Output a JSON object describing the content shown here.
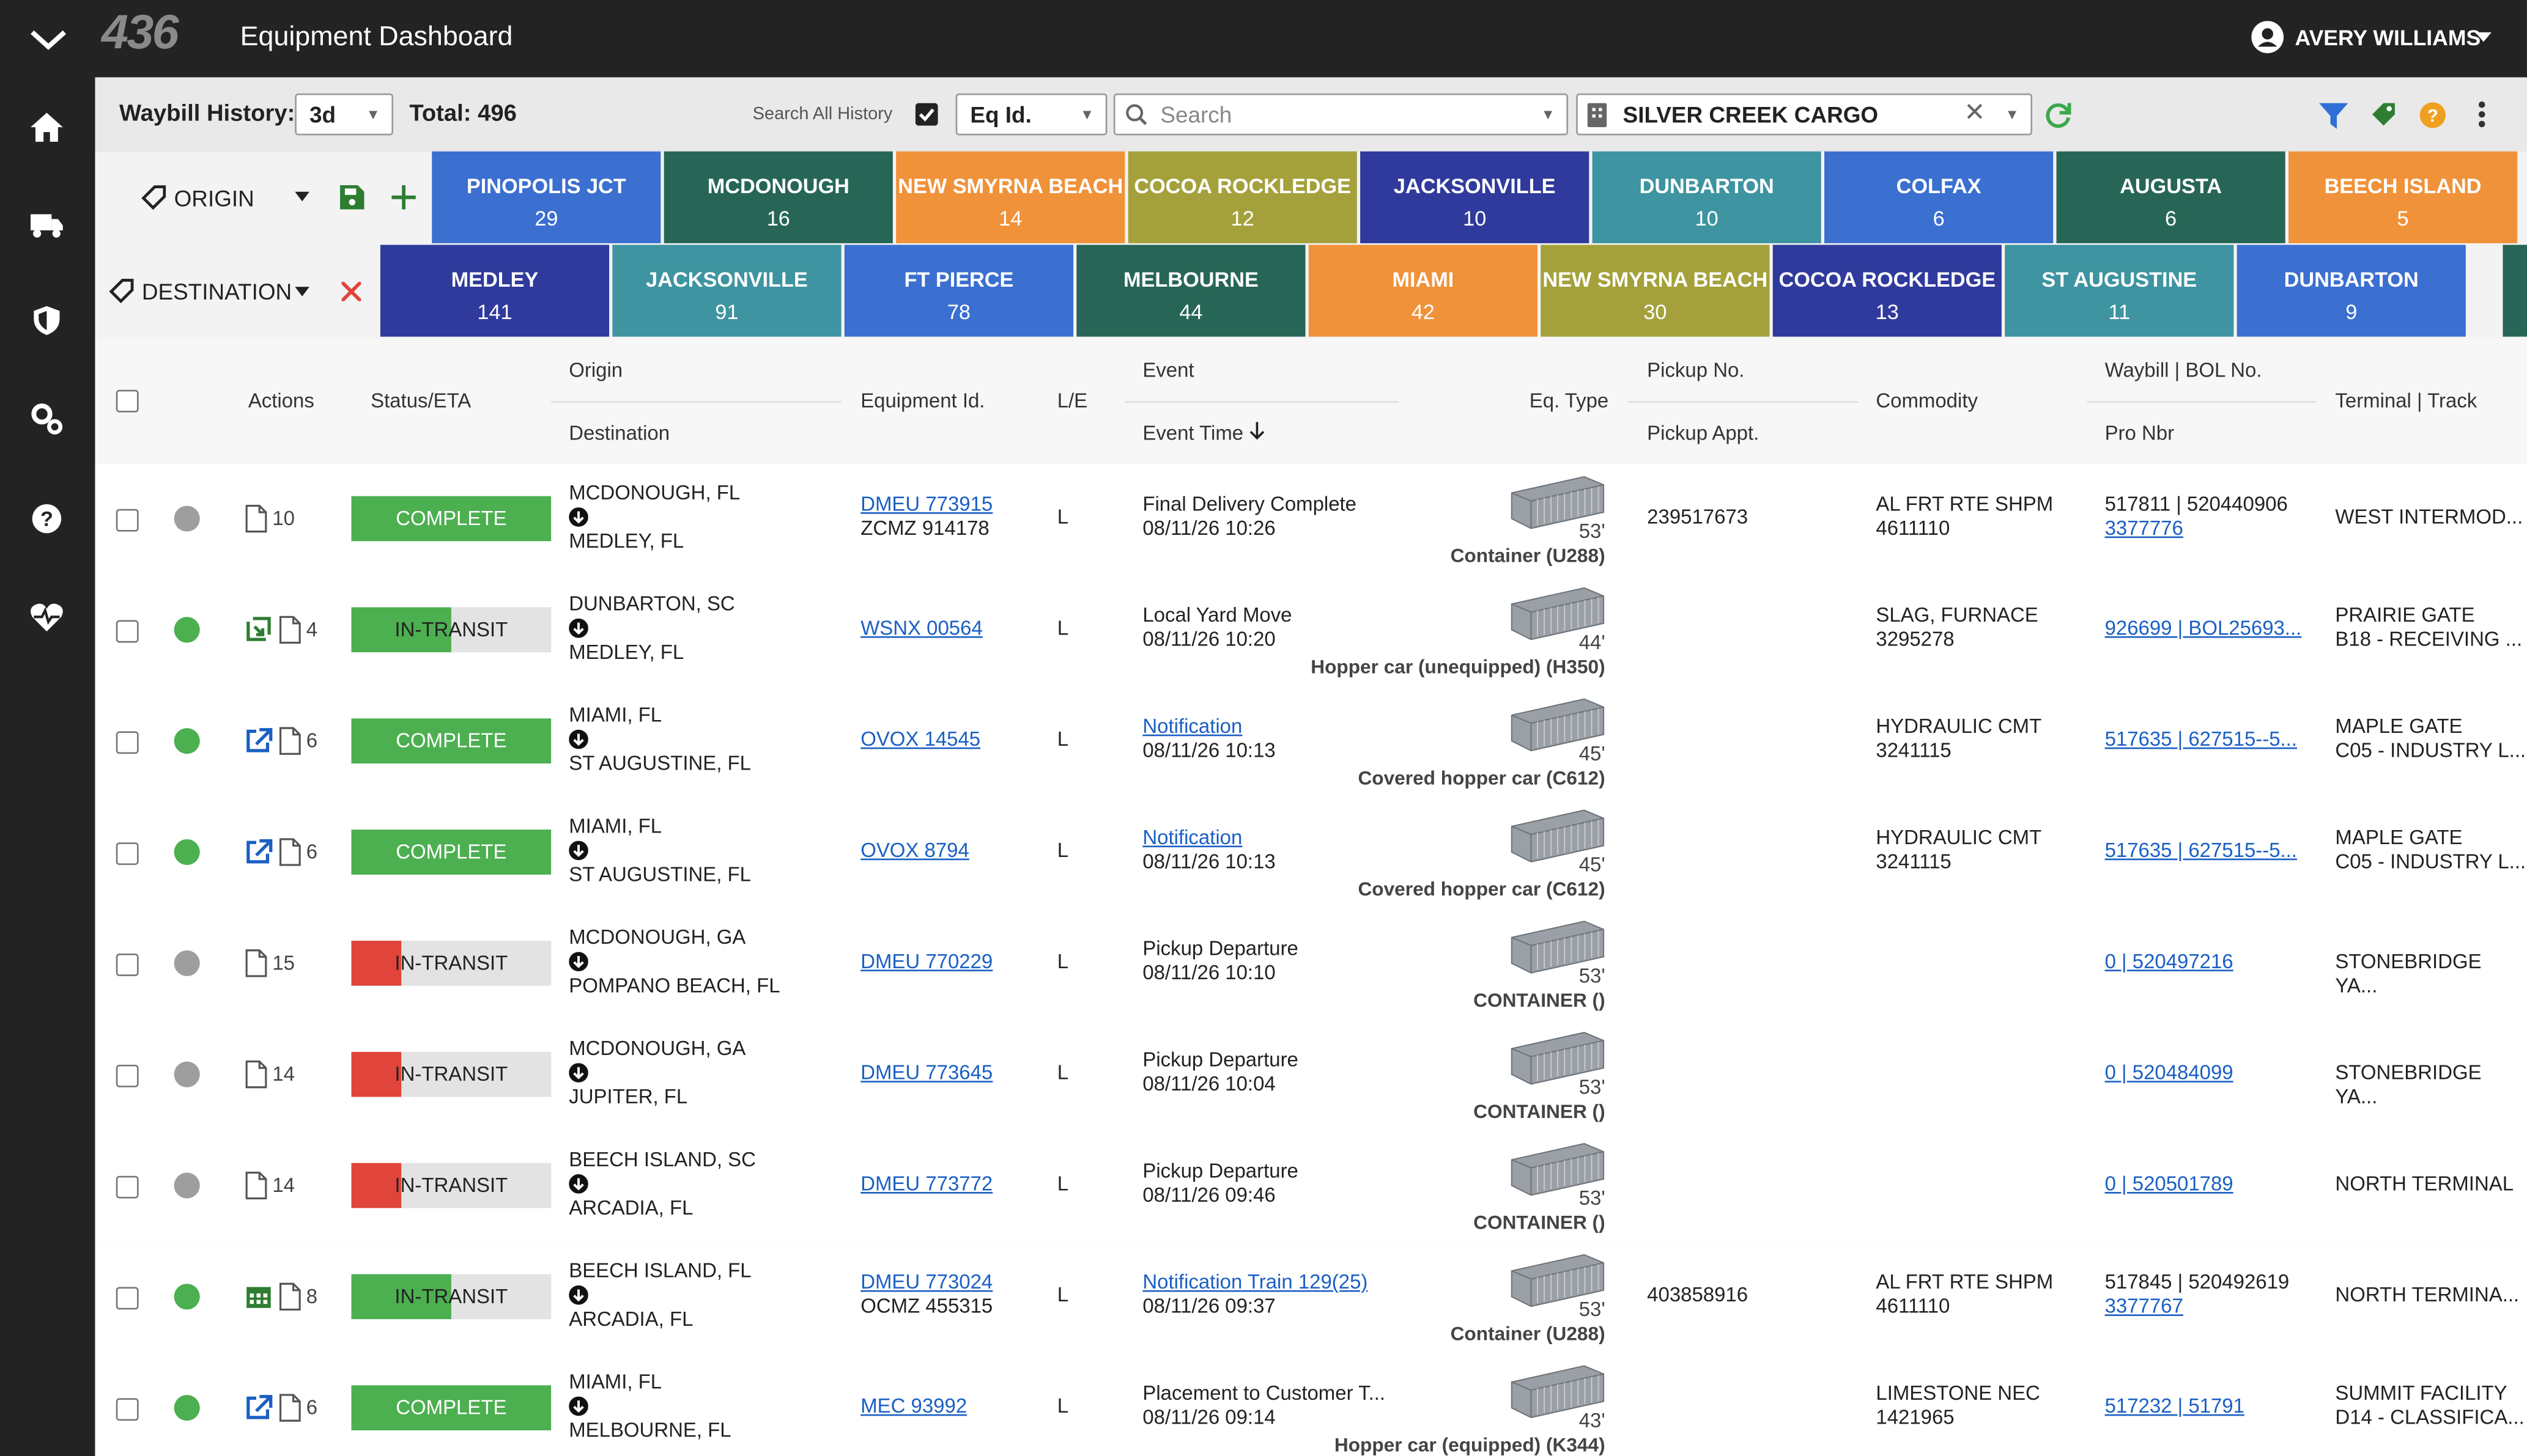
{
  "header": {
    "logo": "436",
    "title": "Equipment Dashboard",
    "user": "AVERY WILLIAMS"
  },
  "toolbar": {
    "history_label": "Waybill History:",
    "range": "3d",
    "total": "Total: 496",
    "search_all": "Search All History",
    "field": "Eq Id.",
    "search_placeholder": "Search",
    "company": "SILVER CREEK CARGO"
  },
  "origin_filter": {
    "label": "ORIGIN",
    "chips": [
      {
        "name": "PINOPOLIS JCT",
        "count": "29",
        "color": "#3b6fd0"
      },
      {
        "name": "MCDONOUGH",
        "count": "16",
        "color": "#276656"
      },
      {
        "name": "NEW SMYRNA BEACH",
        "count": "14",
        "color": "#f0923a"
      },
      {
        "name": "COCOA ROCKLEDGE",
        "count": "12",
        "color": "#a4a13c"
      },
      {
        "name": "JACKSONVILLE",
        "count": "10",
        "color": "#2f3a9c"
      },
      {
        "name": "DUNBARTON",
        "count": "10",
        "color": "#3e94a0"
      },
      {
        "name": "COLFAX",
        "count": "6",
        "color": "#3b6fd0"
      },
      {
        "name": "AUGUSTA",
        "count": "6",
        "color": "#276656"
      },
      {
        "name": "BEECH ISLAND",
        "count": "5",
        "color": "#f0923a"
      }
    ]
  },
  "destination_filter": {
    "label": "DESTINATION",
    "chips": [
      {
        "name": "MEDLEY",
        "count": "141",
        "color": "#2f3a9c"
      },
      {
        "name": "JACKSONVILLE",
        "count": "91",
        "color": "#3e94a0"
      },
      {
        "name": "FT PIERCE",
        "count": "78",
        "color": "#3b6fd0"
      },
      {
        "name": "MELBOURNE",
        "count": "44",
        "color": "#276656"
      },
      {
        "name": "MIAMI",
        "count": "42",
        "color": "#f0923a"
      },
      {
        "name": "NEW SMYRNA BEACH",
        "count": "30",
        "color": "#a4a13c"
      },
      {
        "name": "COCOA ROCKLEDGE",
        "count": "13",
        "color": "#2f3a9c"
      },
      {
        "name": "ST AUGUSTINE",
        "count": "11",
        "color": "#3e94a0"
      },
      {
        "name": "DUNBARTON",
        "count": "9",
        "color": "#3b6fd0"
      }
    ]
  },
  "columns": {
    "actions": "Actions",
    "status": "Status/ETA",
    "origin": "Origin",
    "destination": "Destination",
    "equipment": "Equipment Id.",
    "le": "L/E",
    "event": "Event",
    "event_time": "Event Time",
    "eq_type": "Eq. Type",
    "pickup": "Pickup No.",
    "pickup_appt": "Pickup Appt.",
    "commodity": "Commodity",
    "waybill": "Waybill | BOL No.",
    "pro": "Pro Nbr",
    "terminal": "Terminal | Track"
  },
  "rows": [
    {
      "dot": "#9e9e9e",
      "icon": "",
      "docs": "10",
      "status": "COMPLETE",
      "bar_color": "#4caf50",
      "progress": 100,
      "origin": "MCDONOUGH, FL",
      "destination": "MEDLEY, FL",
      "equipment": "DMEU 773915",
      "equipment2": "ZCMZ 914178",
      "le": "L",
      "event": "Final Delivery Complete",
      "event_time": "08/11/26 10:26",
      "length": "53'",
      "eq_type": "Container (U288)",
      "pickup": "239517673",
      "commodity": "AL FRT RTE SHPM",
      "commodity2": "4611110",
      "waybill": "517811 | 520440906",
      "pro": "3377776",
      "terminal": "WEST INTERMOD..."
    },
    {
      "dot": "#4caf50",
      "icon": "assign",
      "docs": "4",
      "status": "IN-TRANSIT",
      "bar_color": "#4caf50",
      "progress": 50,
      "origin": "DUNBARTON, SC",
      "destination": "MEDLEY, FL",
      "equipment": "WSNX 00564",
      "le": "L",
      "event": "Local Yard Move",
      "event_time": "08/11/26 10:20",
      "length": "44'",
      "eq_type": "Hopper car (unequipped) (H350)",
      "commodity": "SLAG, FURNACE",
      "commodity2": "3295278",
      "waybill_link": "926699 | BOL25693...",
      "terminal": "PRAIRIE GATE",
      "terminal2": "B18 - RECEIVING ..."
    },
    {
      "dot": "#4caf50",
      "icon": "external",
      "docs": "6",
      "status": "COMPLETE",
      "bar_color": "#4caf50",
      "progress": 100,
      "origin": "MIAMI, FL",
      "destination": "ST AUGUSTINE, FL",
      "equipment": "OVOX 14545",
      "le": "L",
      "event_link": "Notification",
      "event_time": "08/11/26 10:13",
      "length": "45'",
      "eq_type": "Covered hopper car (C612)",
      "commodity": "HYDRAULIC CMT",
      "commodity2": "3241115",
      "waybill_link": "517635 | 627515--5...",
      "terminal": "MAPLE GATE",
      "terminal2": "C05 - INDUSTRY L..."
    },
    {
      "dot": "#4caf50",
      "icon": "external",
      "docs": "6",
      "status": "COMPLETE",
      "bar_color": "#4caf50",
      "progress": 100,
      "origin": "MIAMI, FL",
      "destination": "ST AUGUSTINE, FL",
      "equipment": "OVOX 8794",
      "le": "L",
      "event_link": "Notification",
      "event_time": "08/11/26 10:13",
      "length": "45'",
      "eq_type": "Covered hopper car (C612)",
      "commodity": "HYDRAULIC CMT",
      "commodity2": "3241115",
      "waybill_link": "517635 | 627515--5...",
      "terminal": "MAPLE GATE",
      "terminal2": "C05 - INDUSTRY L..."
    },
    {
      "dot": "#9e9e9e",
      "icon": "",
      "docs": "15",
      "status": "IN-TRANSIT",
      "bar_color": "#e0443a",
      "progress": 25,
      "origin": "MCDONOUGH, GA",
      "destination": "POMPANO BEACH, FL",
      "equipment": "DMEU 770229",
      "le": "L",
      "event": "Pickup Departure",
      "event_time": "08/11/26 10:10",
      "length": "53'",
      "eq_type": "CONTAINER ()",
      "waybill_link": "0 | 520497216",
      "terminal": "STONEBRIDGE YA..."
    },
    {
      "dot": "#9e9e9e",
      "icon": "",
      "docs": "14",
      "status": "IN-TRANSIT",
      "bar_color": "#e0443a",
      "progress": 25,
      "origin": "MCDONOUGH, GA",
      "destination": "JUPITER, FL",
      "equipment": "DMEU 773645",
      "le": "L",
      "event": "Pickup Departure",
      "event_time": "08/11/26 10:04",
      "length": "53'",
      "eq_type": "CONTAINER ()",
      "waybill_link": "0 | 520484099",
      "terminal": "STONEBRIDGE YA..."
    },
    {
      "dot": "#9e9e9e",
      "icon": "",
      "docs": "14",
      "status": "IN-TRANSIT",
      "bar_color": "#e0443a",
      "progress": 25,
      "origin": "BEECH ISLAND, SC",
      "destination": "ARCADIA, FL",
      "equipment": "DMEU 773772",
      "le": "L",
      "event": "Pickup Departure",
      "event_time": "08/11/26 09:46",
      "length": "53'",
      "eq_type": "CONTAINER ()",
      "waybill_link": "0 | 520501789",
      "terminal": "NORTH TERMINAL"
    },
    {
      "dot": "#4caf50",
      "icon": "calendar",
      "docs": "8",
      "status": "IN-TRANSIT",
      "bar_color": "#4caf50",
      "progress": 50,
      "origin": "BEECH ISLAND, FL",
      "destination": "ARCADIA, FL",
      "equipment": "DMEU 773024",
      "equipment2": "OCMZ 455315",
      "le": "L",
      "event_link": "Notification Train 129(25)",
      "event_time": "08/11/26 09:37",
      "length": "53'",
      "eq_type": "Container (U288)",
      "pickup": "403858916",
      "commodity": "AL FRT RTE SHPM",
      "commodity2": "4611110",
      "waybill": "517845 | 520492619",
      "pro": "3377767",
      "terminal": "NORTH TERMINA..."
    },
    {
      "dot": "#4caf50",
      "icon": "external",
      "docs": "6",
      "status": "COMPLETE",
      "bar_color": "#4caf50",
      "progress": 100,
      "origin": "MIAMI, FL",
      "destination": "MELBOURNE, FL",
      "equipment": "MEC 93992",
      "le": "L",
      "event": "Placement to Customer T...",
      "event_time": "08/11/26 09:14",
      "length": "43'",
      "eq_type": "Hopper car (equipped) (K344)",
      "commodity": "LIMESTONE NEC",
      "commodity2": "1421965",
      "waybill_link": "517232 | 51791",
      "terminal": "SUMMIT FACILITY",
      "terminal2": "D14 - CLASSIFICA..."
    }
  ]
}
